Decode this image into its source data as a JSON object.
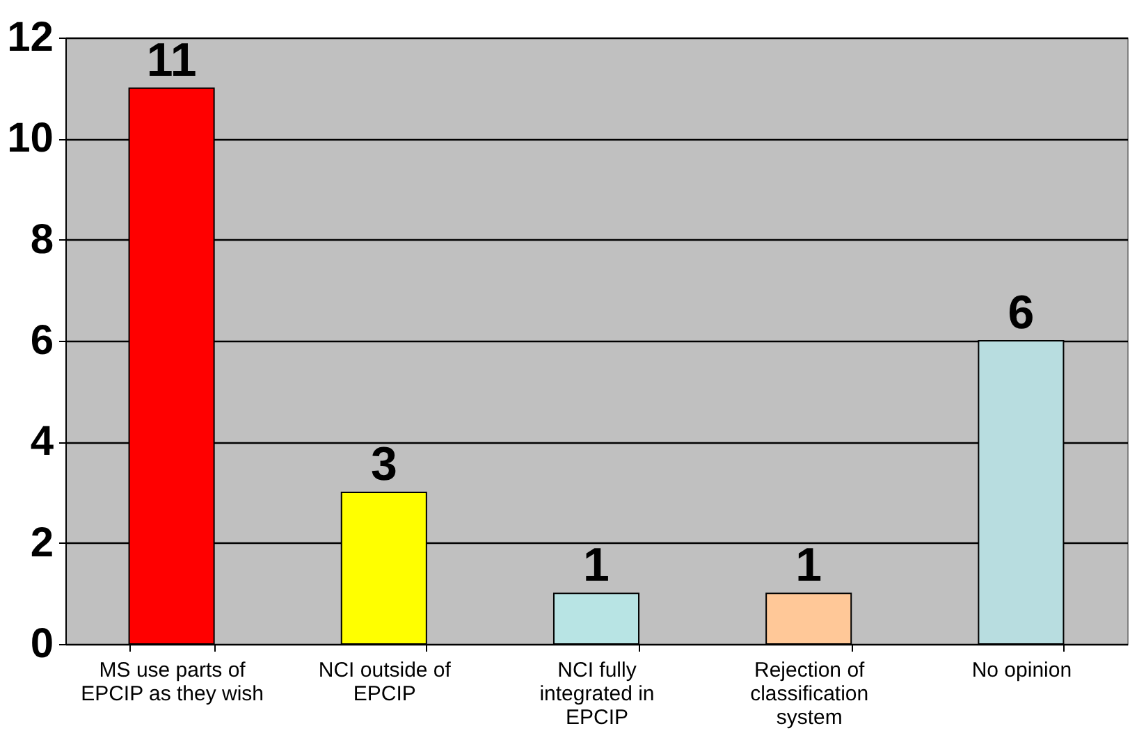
{
  "chart_data": {
    "type": "bar",
    "categories": [
      "MS use parts of EPCIP as they wish",
      "NCI outside of EPCIP",
      "NCI fully integrated in EPCIP",
      "Rejection of classification system",
      "No opinion"
    ],
    "values": [
      11,
      3,
      1,
      1,
      6
    ],
    "colors": [
      "#ff0000",
      "#ffff00",
      "#b8e4e4",
      "#ffc898",
      "#b8dde0"
    ],
    "ylim": [
      0,
      12
    ],
    "yticks": [
      0,
      2,
      4,
      6,
      8,
      10,
      12
    ],
    "grid": "y",
    "data_labels": true
  }
}
